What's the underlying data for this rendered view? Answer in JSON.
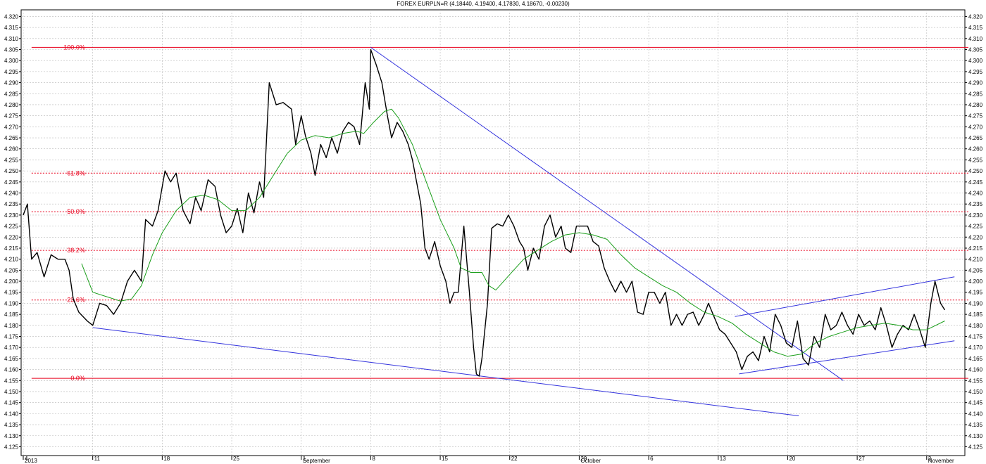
{
  "chart_data": {
    "type": "line",
    "title": "FOREX EURPLN=R (4.18440, 4.19400, 4.17830, 4.18670, -0.00230)",
    "ylim": [
      4.121,
      4.323
    ],
    "y_ticks": [
      4.125,
      4.13,
      4.135,
      4.14,
      4.145,
      4.15,
      4.155,
      4.16,
      4.165,
      4.17,
      4.175,
      4.18,
      4.185,
      4.19,
      4.195,
      4.2,
      4.205,
      4.21,
      4.215,
      4.22,
      4.225,
      4.23,
      4.235,
      4.24,
      4.245,
      4.25,
      4.255,
      4.26,
      4.265,
      4.27,
      4.275,
      4.28,
      4.285,
      4.29,
      4.295,
      4.3,
      4.305,
      4.31,
      4.315,
      4.32
    ],
    "x_ticks": [
      {
        "label": "4",
        "t": 0
      },
      {
        "label": "11",
        "t": 5
      },
      {
        "label": "18",
        "t": 10
      },
      {
        "label": "25",
        "t": 15
      },
      {
        "label": "1",
        "t": 20
      },
      {
        "label": "8",
        "t": 25
      },
      {
        "label": "15",
        "t": 30
      },
      {
        "label": "22",
        "t": 35
      },
      {
        "label": "29",
        "t": 40
      },
      {
        "label": "6",
        "t": 45
      },
      {
        "label": "13",
        "t": 50
      },
      {
        "label": "20",
        "t": 55
      },
      {
        "label": "27",
        "t": 60
      },
      {
        "label": "3",
        "t": 65
      }
    ],
    "x_sublabels": [
      {
        "label": "2013",
        "t": 0
      },
      {
        "label": "September",
        "t": 20
      },
      {
        "label": "October",
        "t": 40
      },
      {
        "label": "November",
        "t": 65
      }
    ],
    "xlim": [
      0,
      68
    ],
    "grid": true,
    "series": [
      {
        "color": "#000000",
        "points": [
          [
            0,
            4.23
          ],
          [
            0.3,
            4.235
          ],
          [
            0.6,
            4.21
          ],
          [
            1,
            4.213
          ],
          [
            1.5,
            4.202
          ],
          [
            2,
            4.212
          ],
          [
            2.5,
            4.21
          ],
          [
            3,
            4.21
          ],
          [
            3.3,
            4.205
          ],
          [
            3.6,
            4.192
          ],
          [
            4,
            4.186
          ],
          [
            4.6,
            4.182
          ],
          [
            5,
            4.18
          ],
          [
            5.5,
            4.19
          ],
          [
            6,
            4.189
          ],
          [
            6.5,
            4.185
          ],
          [
            7,
            4.19
          ],
          [
            7.5,
            4.2
          ],
          [
            8,
            4.205
          ],
          [
            8.5,
            4.2
          ],
          [
            8.8,
            4.228
          ],
          [
            9.3,
            4.225
          ],
          [
            9.7,
            4.232
          ],
          [
            10.2,
            4.25
          ],
          [
            10.6,
            4.245
          ],
          [
            11,
            4.249
          ],
          [
            11.5,
            4.232
          ],
          [
            12,
            4.226
          ],
          [
            12.4,
            4.238
          ],
          [
            12.8,
            4.232
          ],
          [
            13.3,
            4.246
          ],
          [
            13.8,
            4.243
          ],
          [
            14.2,
            4.23
          ],
          [
            14.6,
            4.222
          ],
          [
            15,
            4.225
          ],
          [
            15.4,
            4.233
          ],
          [
            15.8,
            4.222
          ],
          [
            16.2,
            4.24
          ],
          [
            16.6,
            4.231
          ],
          [
            17,
            4.245
          ],
          [
            17.3,
            4.238
          ],
          [
            17.7,
            4.29
          ],
          [
            18.2,
            4.28
          ],
          [
            18.7,
            4.281
          ],
          [
            19.3,
            4.278
          ],
          [
            19.6,
            4.262
          ],
          [
            20,
            4.275
          ],
          [
            20.3,
            4.266
          ],
          [
            20.7,
            4.258
          ],
          [
            21,
            4.248
          ],
          [
            21.4,
            4.262
          ],
          [
            21.8,
            4.256
          ],
          [
            22.2,
            4.265
          ],
          [
            22.6,
            4.258
          ],
          [
            23,
            4.268
          ],
          [
            23.4,
            4.272
          ],
          [
            23.8,
            4.27
          ],
          [
            24.2,
            4.262
          ],
          [
            24.6,
            4.29
          ],
          [
            24.9,
            4.278
          ],
          [
            25,
            4.305
          ],
          [
            25.4,
            4.298
          ],
          [
            25.8,
            4.29
          ],
          [
            26.2,
            4.275
          ],
          [
            26.5,
            4.265
          ],
          [
            26.9,
            4.272
          ],
          [
            27.3,
            4.268
          ],
          [
            27.7,
            4.262
          ],
          [
            28,
            4.255
          ],
          [
            28.3,
            4.245
          ],
          [
            28.6,
            4.235
          ],
          [
            28.9,
            4.215
          ],
          [
            29.2,
            4.21
          ],
          [
            29.6,
            4.218
          ],
          [
            30,
            4.207
          ],
          [
            30.4,
            4.2
          ],
          [
            30.7,
            4.19
          ],
          [
            31,
            4.195
          ],
          [
            31.3,
            4.195
          ],
          [
            31.7,
            4.225
          ],
          [
            32.1,
            4.195
          ],
          [
            32.4,
            4.17
          ],
          [
            32.6,
            4.158
          ],
          [
            32.8,
            4.157
          ],
          [
            33,
            4.165
          ],
          [
            33.4,
            4.19
          ],
          [
            33.7,
            4.224
          ],
          [
            34.1,
            4.226
          ],
          [
            34.5,
            4.225
          ],
          [
            34.9,
            4.23
          ],
          [
            35.3,
            4.225
          ],
          [
            35.7,
            4.218
          ],
          [
            36,
            4.215
          ],
          [
            36.3,
            4.205
          ],
          [
            36.7,
            4.215
          ],
          [
            37.1,
            4.21
          ],
          [
            37.5,
            4.225
          ],
          [
            37.9,
            4.23
          ],
          [
            38.3,
            4.22
          ],
          [
            38.7,
            4.225
          ],
          [
            39,
            4.215
          ],
          [
            39.4,
            4.213
          ],
          [
            39.8,
            4.225
          ],
          [
            40.2,
            4.225
          ],
          [
            40.6,
            4.225
          ],
          [
            41,
            4.218
          ],
          [
            41.4,
            4.216
          ],
          [
            41.8,
            4.206
          ],
          [
            42.2,
            4.2
          ],
          [
            42.6,
            4.195
          ],
          [
            43,
            4.2
          ],
          [
            43.4,
            4.195
          ],
          [
            43.8,
            4.2
          ],
          [
            44.2,
            4.186
          ],
          [
            44.6,
            4.185
          ],
          [
            45,
            4.195
          ],
          [
            45.4,
            4.195
          ],
          [
            45.8,
            4.19
          ],
          [
            46.2,
            4.195
          ],
          [
            46.6,
            4.18
          ],
          [
            47,
            4.185
          ],
          [
            47.4,
            4.18
          ],
          [
            47.8,
            4.185
          ],
          [
            48.2,
            4.186
          ],
          [
            48.6,
            4.18
          ],
          [
            49,
            4.185
          ],
          [
            49.3,
            4.19
          ],
          [
            49.7,
            4.184
          ],
          [
            50.1,
            4.178
          ],
          [
            50.5,
            4.176
          ],
          [
            50.9,
            4.172
          ],
          [
            51.3,
            4.168
          ],
          [
            51.7,
            4.16
          ],
          [
            52.1,
            4.166
          ],
          [
            52.5,
            4.168
          ],
          [
            52.9,
            4.164
          ],
          [
            53.3,
            4.175
          ],
          [
            53.7,
            4.168
          ],
          [
            54.1,
            4.185
          ],
          [
            54.5,
            4.18
          ],
          [
            54.9,
            4.172
          ],
          [
            55.3,
            4.17
          ],
          [
            55.7,
            4.182
          ],
          [
            56.1,
            4.165
          ],
          [
            56.5,
            4.162
          ],
          [
            56.9,
            4.175
          ],
          [
            57.3,
            4.17
          ],
          [
            57.7,
            4.185
          ],
          [
            58.1,
            4.178
          ],
          [
            58.5,
            4.18
          ],
          [
            58.9,
            4.186
          ],
          [
            59.3,
            4.18
          ],
          [
            59.7,
            4.176
          ],
          [
            60.1,
            4.185
          ],
          [
            60.5,
            4.18
          ],
          [
            60.9,
            4.182
          ],
          [
            61.3,
            4.178
          ],
          [
            61.7,
            4.188
          ],
          [
            62.1,
            4.18
          ],
          [
            62.5,
            4.17
          ],
          [
            62.9,
            4.176
          ],
          [
            63.3,
            4.18
          ],
          [
            63.7,
            4.178
          ],
          [
            64.1,
            4.185
          ],
          [
            64.5,
            4.178
          ],
          [
            64.9,
            4.17
          ],
          [
            65.3,
            4.19
          ],
          [
            65.6,
            4.2
          ],
          [
            66,
            4.19
          ],
          [
            66.3,
            4.187
          ]
        ]
      },
      {
        "color": "#1a9e1a",
        "points": [
          [
            4.2,
            4.208
          ],
          [
            5,
            4.195
          ],
          [
            6,
            4.193
          ],
          [
            7,
            4.191
          ],
          [
            7.8,
            4.192
          ],
          [
            8.5,
            4.198
          ],
          [
            9.3,
            4.212
          ],
          [
            10,
            4.222
          ],
          [
            11,
            4.232
          ],
          [
            12,
            4.238
          ],
          [
            13,
            4.239
          ],
          [
            14,
            4.237
          ],
          [
            15,
            4.232
          ],
          [
            16,
            4.232
          ],
          [
            17,
            4.238
          ],
          [
            18,
            4.248
          ],
          [
            19,
            4.258
          ],
          [
            20,
            4.264
          ],
          [
            21,
            4.266
          ],
          [
            22,
            4.265
          ],
          [
            23,
            4.267
          ],
          [
            24,
            4.268
          ],
          [
            24.5,
            4.267
          ],
          [
            25.2,
            4.272
          ],
          [
            26,
            4.277
          ],
          [
            26.5,
            4.278
          ],
          [
            27,
            4.274
          ],
          [
            28,
            4.262
          ],
          [
            29,
            4.245
          ],
          [
            30,
            4.228
          ],
          [
            31,
            4.215
          ],
          [
            31.5,
            4.206
          ],
          [
            32.2,
            4.204
          ],
          [
            33,
            4.204
          ],
          [
            33.5,
            4.198
          ],
          [
            34,
            4.196
          ],
          [
            35,
            4.203
          ],
          [
            36,
            4.21
          ],
          [
            37,
            4.214
          ],
          [
            38,
            4.218
          ],
          [
            39,
            4.221
          ],
          [
            40,
            4.222
          ],
          [
            41,
            4.221
          ],
          [
            42,
            4.219
          ],
          [
            43,
            4.212
          ],
          [
            44,
            4.206
          ],
          [
            45,
            4.202
          ],
          [
            46,
            4.198
          ],
          [
            47,
            4.195
          ],
          [
            48,
            4.19
          ],
          [
            49,
            4.186
          ],
          [
            50,
            4.184
          ],
          [
            51,
            4.181
          ],
          [
            52,
            4.176
          ],
          [
            53,
            4.172
          ],
          [
            54,
            4.168
          ],
          [
            55,
            4.166
          ],
          [
            56,
            4.167
          ],
          [
            57,
            4.172
          ],
          [
            58,
            4.175
          ],
          [
            59,
            4.177
          ],
          [
            60,
            4.179
          ],
          [
            61,
            4.18
          ],
          [
            62,
            4.181
          ],
          [
            63,
            4.18
          ],
          [
            64,
            4.178
          ],
          [
            65,
            4.178
          ],
          [
            66.3,
            4.182
          ]
        ]
      }
    ],
    "trend_lines": [
      {
        "from": [
          5,
          4.179
        ],
        "to": [
          55.8,
          4.139
        ]
      },
      {
        "from": [
          25,
          4.306
        ],
        "to": [
          59,
          4.155
        ]
      },
      {
        "from": [
          51.5,
          4.158
        ],
        "to": [
          67,
          4.173
        ]
      },
      {
        "from": [
          51.2,
          4.184
        ],
        "to": [
          67,
          4.202
        ]
      }
    ],
    "fibonacci_levels": [
      {
        "label": "100.0%",
        "value": 4.306,
        "style": "solid"
      },
      {
        "label": "61.8%",
        "value": 4.249,
        "style": "dashed"
      },
      {
        "label": "50.0%",
        "value": 4.2315,
        "style": "dashed"
      },
      {
        "label": "38.2%",
        "value": 4.214,
        "style": "dashed"
      },
      {
        "label": "23.6%",
        "value": 4.1915,
        "style": "dashed"
      },
      {
        "label": "0.0%",
        "value": 4.156,
        "style": "solid"
      }
    ],
    "fib_x_range": [
      0.6,
      68
    ],
    "colors": {
      "fib": "#e8001c",
      "trend": "#3333dd",
      "grid": "#b8b8b8",
      "axis": "#000000"
    }
  }
}
